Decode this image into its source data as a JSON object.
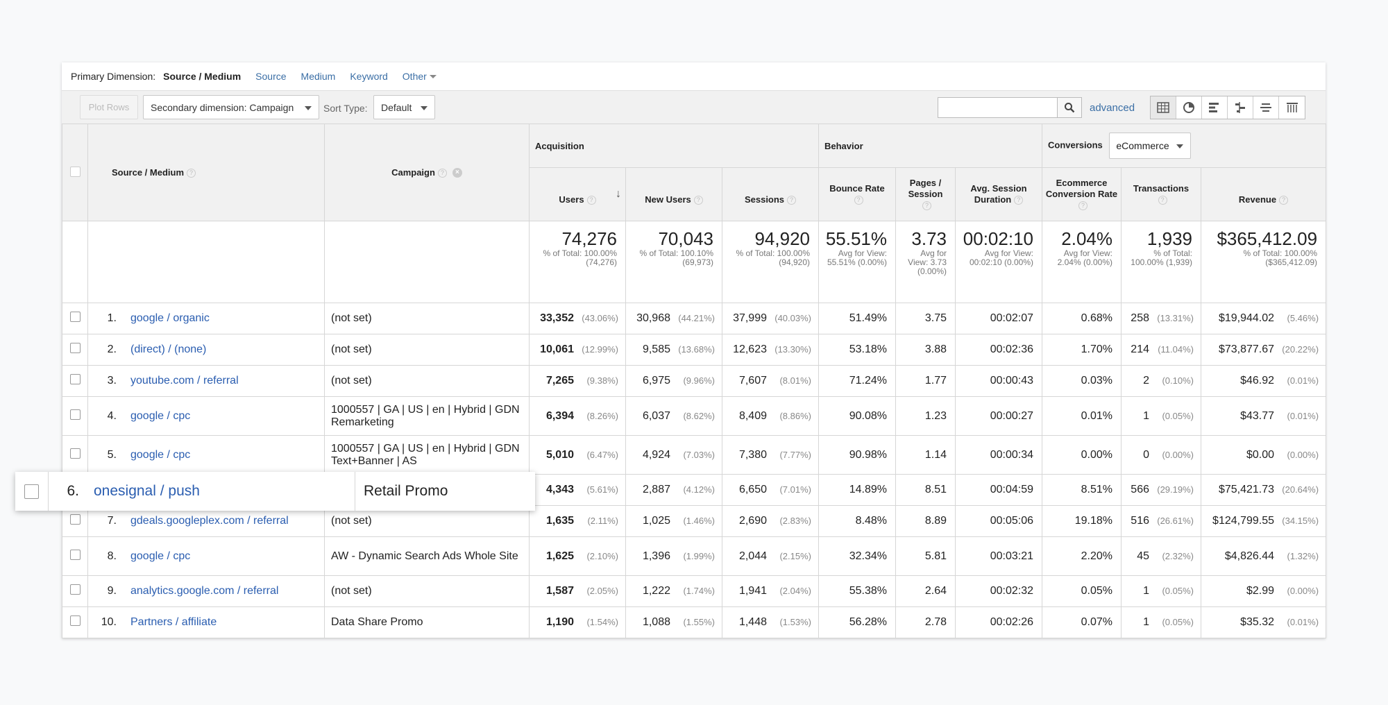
{
  "primary_dimension": {
    "label": "Primary Dimension:",
    "current": "Source / Medium",
    "options": [
      "Source",
      "Medium",
      "Keyword"
    ],
    "other": "Other"
  },
  "toolbar": {
    "plot_rows": "Plot Rows",
    "secondary_dimension": "Secondary dimension: Campaign",
    "sort_type_label": "Sort Type:",
    "sort_type_value": "Default",
    "search_placeholder": "",
    "advanced": "advanced",
    "view_icons": [
      "table-view-icon",
      "pie-view-icon",
      "performance-view-icon",
      "comparison-view-icon",
      "term-cloud-icon",
      "pivot-view-icon"
    ]
  },
  "headers": {
    "source_medium": "Source / Medium",
    "campaign": "Campaign",
    "acquisition": "Acquisition",
    "behavior": "Behavior",
    "conversions": "Conversions",
    "conversions_select": "eCommerce",
    "users": "Users",
    "new_users": "New Users",
    "sessions": "Sessions",
    "bounce_rate": "Bounce Rate",
    "pages_session": "Pages / Session",
    "avg_session_duration": "Avg. Session Duration",
    "ecommerce_conversion_rate": "Ecommerce Conversion Rate",
    "transactions": "Transactions",
    "revenue": "Revenue"
  },
  "totals": {
    "users": {
      "value": "74,276",
      "sub": "% of Total: 100.00% (74,276)"
    },
    "new_users": {
      "value": "70,043",
      "sub": "% of Total: 100.10% (69,973)"
    },
    "sessions": {
      "value": "94,920",
      "sub": "% of Total: 100.00% (94,920)"
    },
    "bounce_rate": {
      "value": "55.51%",
      "sub": "Avg for View: 55.51% (0.00%)"
    },
    "pages_session": {
      "value": "3.73",
      "sub": "Avg for View: 3.73 (0.00%)"
    },
    "avg_session_duration": {
      "value": "00:02:10",
      "sub": "Avg for View: 00:02:10 (0.00%)"
    },
    "ecommerce_conversion_rate": {
      "value": "2.04%",
      "sub": "Avg for View: 2.04% (0.00%)"
    },
    "transactions": {
      "value": "1,939",
      "sub": "% of Total: 100.00% (1,939)"
    },
    "revenue": {
      "value": "$365,412.09",
      "sub": "% of Total: 100.00% ($365,412.09)"
    }
  },
  "rows": [
    {
      "idx": "1.",
      "source": "google / organic",
      "campaign": "(not set)",
      "users": "33,352",
      "users_pct": "(43.06%)",
      "new_users": "30,968",
      "new_users_pct": "(44.21%)",
      "sessions": "37,999",
      "sessions_pct": "(40.03%)",
      "bounce": "51.49%",
      "pages": "3.75",
      "duration": "00:02:07",
      "conv": "0.68%",
      "trans": "258",
      "trans_pct": "(13.31%)",
      "revenue": "$19,944.02",
      "revenue_pct": "(5.46%)"
    },
    {
      "idx": "2.",
      "source": "(direct) / (none)",
      "campaign": "(not set)",
      "users": "10,061",
      "users_pct": "(12.99%)",
      "new_users": "9,585",
      "new_users_pct": "(13.68%)",
      "sessions": "12,623",
      "sessions_pct": "(13.30%)",
      "bounce": "53.18%",
      "pages": "3.88",
      "duration": "00:02:36",
      "conv": "1.70%",
      "trans": "214",
      "trans_pct": "(11.04%)",
      "revenue": "$73,877.67",
      "revenue_pct": "(20.22%)"
    },
    {
      "idx": "3.",
      "source": "youtube.com / referral",
      "campaign": "(not set)",
      "users": "7,265",
      "users_pct": "(9.38%)",
      "new_users": "6,975",
      "new_users_pct": "(9.96%)",
      "sessions": "7,607",
      "sessions_pct": "(8.01%)",
      "bounce": "71.24%",
      "pages": "1.77",
      "duration": "00:00:43",
      "conv": "0.03%",
      "trans": "2",
      "trans_pct": "(0.10%)",
      "revenue": "$46.92",
      "revenue_pct": "(0.01%)"
    },
    {
      "idx": "4.",
      "source": "google / cpc",
      "campaign": "1000557 | GA | US | en | Hybrid | GDN Remarketing",
      "users": "6,394",
      "users_pct": "(8.26%)",
      "new_users": "6,037",
      "new_users_pct": "(8.62%)",
      "sessions": "8,409",
      "sessions_pct": "(8.86%)",
      "bounce": "90.08%",
      "pages": "1.23",
      "duration": "00:00:27",
      "conv": "0.01%",
      "trans": "1",
      "trans_pct": "(0.05%)",
      "revenue": "$43.77",
      "revenue_pct": "(0.01%)"
    },
    {
      "idx": "5.",
      "source": "google / cpc",
      "campaign": "1000557 | GA | US | en | Hybrid | GDN Text+Banner | AS",
      "users": "5,010",
      "users_pct": "(6.47%)",
      "new_users": "4,924",
      "new_users_pct": "(7.03%)",
      "sessions": "7,380",
      "sessions_pct": "(7.77%)",
      "bounce": "90.98%",
      "pages": "1.14",
      "duration": "00:00:34",
      "conv": "0.00%",
      "trans": "0",
      "trans_pct": "(0.00%)",
      "revenue": "$0.00",
      "revenue_pct": "(0.00%)"
    },
    {
      "idx": "6.",
      "source": "onesignal / push",
      "campaign": "Retail Promo",
      "users": "4,343",
      "users_pct": "(5.61%)",
      "new_users": "2,887",
      "new_users_pct": "(4.12%)",
      "sessions": "6,650",
      "sessions_pct": "(7.01%)",
      "bounce": "14.89%",
      "pages": "8.51",
      "duration": "00:04:59",
      "conv": "8.51%",
      "trans": "566",
      "trans_pct": "(29.19%)",
      "revenue": "$75,421.73",
      "revenue_pct": "(20.64%)"
    },
    {
      "idx": "7.",
      "source": "gdeals.googleplex.com / referral",
      "campaign": "(not set)",
      "users": "1,635",
      "users_pct": "(2.11%)",
      "new_users": "1,025",
      "new_users_pct": "(1.46%)",
      "sessions": "2,690",
      "sessions_pct": "(2.83%)",
      "bounce": "8.48%",
      "pages": "8.89",
      "duration": "00:05:06",
      "conv": "19.18%",
      "trans": "516",
      "trans_pct": "(26.61%)",
      "revenue": "$124,799.55",
      "revenue_pct": "(34.15%)"
    },
    {
      "idx": "8.",
      "source": "google / cpc",
      "campaign": "AW - Dynamic Search Ads Whole Site",
      "users": "1,625",
      "users_pct": "(2.10%)",
      "new_users": "1,396",
      "new_users_pct": "(1.99%)",
      "sessions": "2,044",
      "sessions_pct": "(2.15%)",
      "bounce": "32.34%",
      "pages": "5.81",
      "duration": "00:03:21",
      "conv": "2.20%",
      "trans": "45",
      "trans_pct": "(2.32%)",
      "revenue": "$4,826.44",
      "revenue_pct": "(1.32%)"
    },
    {
      "idx": "9.",
      "source": "analytics.google.com / referral",
      "campaign": "(not set)",
      "users": "1,587",
      "users_pct": "(2.05%)",
      "new_users": "1,222",
      "new_users_pct": "(1.74%)",
      "sessions": "1,941",
      "sessions_pct": "(2.04%)",
      "bounce": "55.38%",
      "pages": "2.64",
      "duration": "00:02:32",
      "conv": "0.05%",
      "trans": "1",
      "trans_pct": "(0.05%)",
      "revenue": "$2.99",
      "revenue_pct": "(0.00%)"
    },
    {
      "idx": "10.",
      "source": "Partners / affiliate",
      "campaign": "Data Share Promo",
      "users": "1,190",
      "users_pct": "(1.54%)",
      "new_users": "1,088",
      "new_users_pct": "(1.55%)",
      "sessions": "1,448",
      "sessions_pct": "(1.53%)",
      "bounce": "56.28%",
      "pages": "2.78",
      "duration": "00:02:26",
      "conv": "0.07%",
      "trans": "1",
      "trans_pct": "(0.05%)",
      "revenue": "$35.32",
      "revenue_pct": "(0.01%)"
    }
  ],
  "highlight_row": {
    "idx": "6.",
    "source": "onesignal / push",
    "campaign": "Retail Promo"
  },
  "colors": {
    "link": "#2a5db0",
    "header_bg": "#f1f1f1",
    "border": "#d6d6d6"
  }
}
